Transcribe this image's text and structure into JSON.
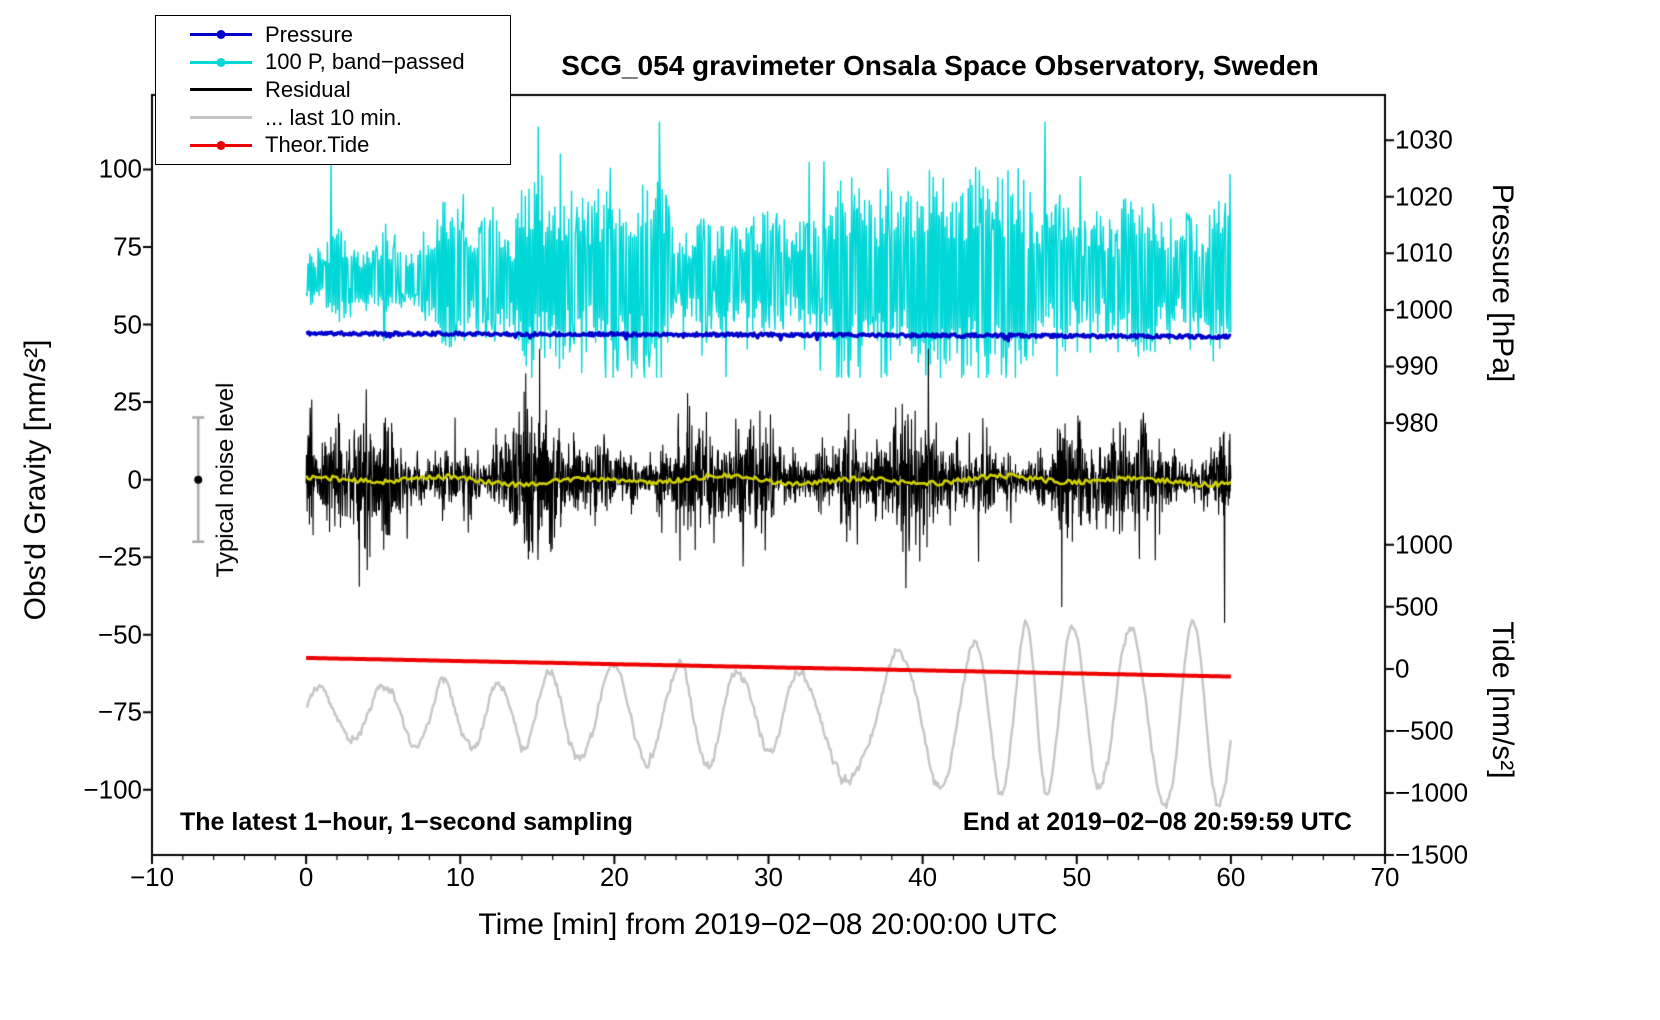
{
  "chart_data": {
    "type": "line",
    "title": "SCG_054 gravimeter Onsala Space Observatory, Sweden",
    "x_axis": {
      "label": "Time [min] from 2019−02−08 20:00:00 UTC",
      "range": [
        -10,
        70
      ],
      "major_ticks": [
        -10,
        0,
        10,
        20,
        30,
        40,
        50,
        60,
        70
      ],
      "minor_tick_step": 2
    },
    "left_axis": {
      "label": "Obs'd Gravity [nm/s²]",
      "range": [
        -121,
        124
      ],
      "ticks": [
        -100,
        -75,
        -50,
        -25,
        0,
        25,
        50,
        75,
        100
      ]
    },
    "pressure_axis": {
      "label": "Pressure [hPa]",
      "ticks": [
        980,
        990,
        1000,
        1010,
        1020,
        1030
      ],
      "hpa_at_left_zero": 970,
      "left_units_per_hpa": 1.824
    },
    "tide_axis": {
      "label": "Tide [nm/s²]",
      "ticks": [
        -1500,
        -1000,
        -500,
        0,
        500,
        1000
      ],
      "left_at_tide_zero": -61,
      "left_units_per_tide": 0.04
    },
    "data_span_minutes": [
      0,
      60
    ],
    "series": [
      {
        "name": "100 P, band−passed",
        "axis": "left",
        "units": "nm/s²",
        "color": "#00d7d7",
        "baseline": 65,
        "typical_range": [
          40,
          100
        ],
        "extreme_range": [
          33,
          116
        ],
        "render": {
          "kind": "spiky",
          "n": 1000,
          "baseline": 65,
          "amp_min": 9,
          "amp_max": 36,
          "spike_prob": 0.013,
          "clamp": [
            33,
            116
          ],
          "lw": 1.4,
          "seed": 22
        }
      },
      {
        "name": "... last 10 min.",
        "axis": "left",
        "units": "nm/s²",
        "color": "#c6c6c6",
        "baseline": -75,
        "typical_range": [
          -105,
          -45
        ],
        "render": {
          "kind": "wave",
          "n": 760,
          "baseline": -75,
          "amp_min": 8,
          "amp_max": 30,
          "freq_min": 0.05,
          "freq_max": 0.28,
          "lw": 2.4,
          "seed": 55
        }
      },
      {
        "name": "Residual",
        "axis": "left",
        "units": "nm/s²",
        "color": "#000000",
        "baseline": 0,
        "typical_range": [
          -15,
          15
        ],
        "extreme_range": [
          -46,
          42
        ],
        "render": {
          "kind": "dense",
          "n": 2800,
          "baseline": 0,
          "sigma": 9,
          "spike_prob": 0.018,
          "clamp": [
            -46,
            42
          ],
          "lw": 1.1,
          "seed": 33
        }
      },
      {
        "name": "Residual low−pass",
        "in_legend": false,
        "axis": "left",
        "units": "nm/s²",
        "color": "#cfcf00",
        "baseline": 0,
        "render": {
          "kind": "smallwave",
          "n": 420,
          "baseline": 0,
          "jitter": 1.6,
          "lw": 2.6,
          "seed": 44
        }
      },
      {
        "name": "Pressure",
        "axis": "pressure",
        "units": "hPa",
        "color": "#0000cd",
        "sample_step_min": 5,
        "values": [
          995.85,
          995.8,
          995.78,
          995.72,
          995.7,
          995.65,
          995.6,
          995.55,
          995.5,
          995.45,
          995.4,
          995.32,
          995.25
        ],
        "render": {
          "kind": "sampled",
          "n": 760,
          "jitter": 0.3,
          "blip": 0.008,
          "lw": 3.5,
          "seed": 11
        }
      },
      {
        "name": "Theor.Tide",
        "axis": "tide",
        "units": "nm/s²",
        "color": "#ee0000",
        "sample_step_min": 5,
        "values": [
          88,
          76,
          63,
          51,
          38,
          26,
          13,
          1,
          -12,
          -24,
          -37,
          -49,
          -62
        ],
        "render": {
          "kind": "sampled",
          "n": 240,
          "jitter": 0,
          "lw": 4,
          "seed": 66
        }
      }
    ],
    "noise_marker": {
      "label": "Typical noise level",
      "x_min": -7,
      "center": 0,
      "half_range": 20,
      "bar_color": "#ababab",
      "dot_color": "#000000"
    },
    "annotations": {
      "sampling": "The latest 1−hour, 1−second sampling",
      "end_time": "End at 2019−02−08 20:59:59 UTC"
    }
  },
  "legend": {
    "items": [
      {
        "label": "Pressure",
        "color": "#0000cd",
        "marker": true
      },
      {
        "label": "100 P, band−passed",
        "color": "#00d7d7",
        "marker": true
      },
      {
        "label": "Residual",
        "color": "#000000",
        "marker": false
      },
      {
        "label": "... last 10 min.",
        "color": "#c6c6c6",
        "marker": false
      },
      {
        "label": "Theor.Tide",
        "color": "#ee0000",
        "marker": true
      }
    ]
  }
}
